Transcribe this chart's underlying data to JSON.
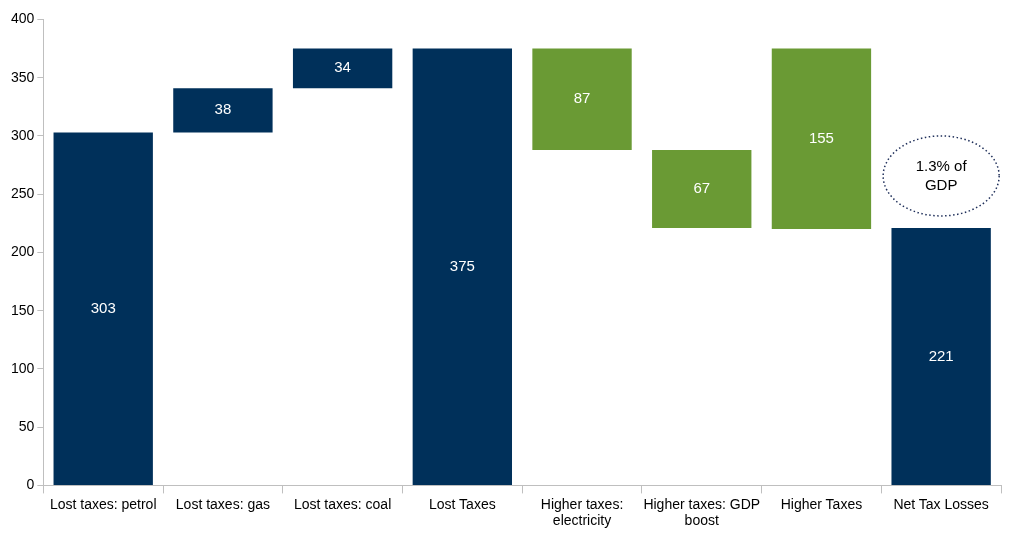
{
  "chart_data": {
    "type": "bar",
    "categories": [
      "Lost taxes: petrol",
      "Lost taxes: gas",
      "Lost taxes: coal",
      "Lost Taxes",
      "Higher taxes: electricity",
      "Higher taxes: GDP boost",
      "Higher Taxes",
      "Net Tax Losses"
    ],
    "values": [
      303,
      38,
      34,
      375,
      87,
      67,
      155,
      221
    ],
    "base": [
      0,
      303,
      341,
      0,
      288,
      221,
      220,
      0
    ],
    "colors": [
      "#00305a",
      "#00305a",
      "#00305a",
      "#00305a",
      "#6a9a34",
      "#6a9a34",
      "#6a9a34",
      "#00305a"
    ],
    "ylim": [
      0,
      400
    ],
    "yticks": [
      0,
      50,
      100,
      150,
      200,
      250,
      300,
      350,
      400
    ],
    "data_labels": true,
    "grid": false,
    "legend": false,
    "annotations": [
      "1.3% of GDP"
    ]
  }
}
